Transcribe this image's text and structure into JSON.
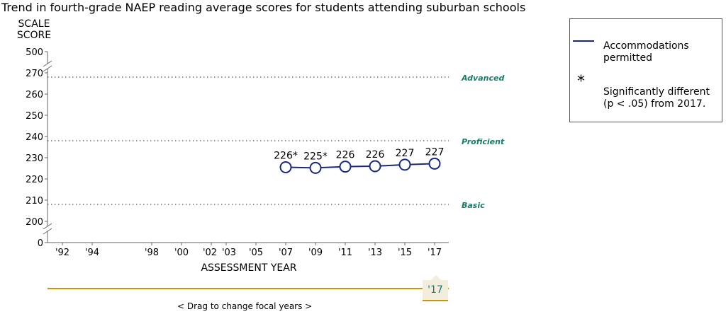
{
  "title": "Trend in fourth-grade NAEP reading average scores for students attending suburban schools",
  "legend": {
    "line_label": "Accommodations permitted",
    "star_symbol": "*",
    "star_label": "Significantly different (p < .05) from 2017."
  },
  "focal_year": "'17",
  "drag_hint": "<  Drag to change focal years  >",
  "colors": {
    "series": "#1a2a7a",
    "achievement_label": "#1a7a6a",
    "timeline": "#c8960c",
    "focal_bg": "#f2eddc"
  },
  "chart_data": {
    "type": "line",
    "title": "Trend in fourth-grade NAEP reading average scores for students attending suburban schools",
    "ylabel": "SCALE SCORE",
    "xlabel": "ASSESSMENT YEAR",
    "ylim": [
      190,
      270
    ],
    "y_ticks": [
      200,
      210,
      220,
      230,
      240,
      250,
      260,
      270
    ],
    "y_break_ticks": [
      0,
      500
    ],
    "x_ticks": [
      {
        "year": 1992,
        "label": "'92"
      },
      {
        "year": 1994,
        "label": "'94"
      },
      {
        "year": 1998,
        "label": "'98"
      },
      {
        "year": 2000,
        "label": "'00"
      },
      {
        "year": 2002,
        "label": "'02"
      },
      {
        "year": 2003,
        "label": "'03"
      },
      {
        "year": 2005,
        "label": "'05"
      },
      {
        "year": 2007,
        "label": "'07"
      },
      {
        "year": 2009,
        "label": "'09"
      },
      {
        "year": 2011,
        "label": "'11"
      },
      {
        "year": 2013,
        "label": "'13"
      },
      {
        "year": 2015,
        "label": "'15"
      },
      {
        "year": 2017,
        "label": "'17"
      }
    ],
    "series": [
      {
        "name": "Accommodations permitted",
        "points": [
          {
            "x": 2007,
            "y": 225.5,
            "label": "226*"
          },
          {
            "x": 2009,
            "y": 225.2,
            "label": "225*"
          },
          {
            "x": 2011,
            "y": 225.8,
            "label": "226"
          },
          {
            "x": 2013,
            "y": 226.0,
            "label": "226"
          },
          {
            "x": 2015,
            "y": 226.7,
            "label": "227"
          },
          {
            "x": 2017,
            "y": 227.2,
            "label": "227"
          }
        ]
      }
    ],
    "reference_lines": [
      {
        "y": 268,
        "label": "Advanced"
      },
      {
        "y": 238,
        "label": "Proficient"
      },
      {
        "y": 208,
        "label": "Basic"
      }
    ]
  }
}
